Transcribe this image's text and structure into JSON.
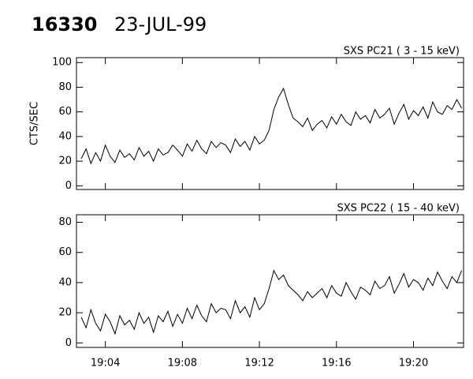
{
  "header": {
    "id": "16330",
    "date": "23-JUL-99"
  },
  "chart_data": [
    {
      "type": "line",
      "title": "SXS PC21  (  3 - 15 keV)",
      "y_label": "CTS/SEC",
      "xlim": [
        2.5,
        22.6
      ],
      "ylim": [
        -3,
        104
      ],
      "yticks": [
        0,
        20,
        40,
        60,
        80,
        100
      ],
      "grid": false,
      "x": [
        2.75,
        3.0,
        3.25,
        3.5,
        3.75,
        4.0,
        4.25,
        4.5,
        4.75,
        5.0,
        5.25,
        5.5,
        5.75,
        6.0,
        6.25,
        6.5,
        6.75,
        7.0,
        7.25,
        7.5,
        7.75,
        8.0,
        8.25,
        8.5,
        8.75,
        9.0,
        9.25,
        9.5,
        9.75,
        10.0,
        10.25,
        10.5,
        10.75,
        11.0,
        11.25,
        11.5,
        11.75,
        12.0,
        12.25,
        12.5,
        12.75,
        13.0,
        13.25,
        13.5,
        13.75,
        14.0,
        14.25,
        14.5,
        14.75,
        15.0,
        15.25,
        15.5,
        15.75,
        16.0,
        16.25,
        16.5,
        16.75,
        17.0,
        17.25,
        17.5,
        17.75,
        18.0,
        18.25,
        18.5,
        18.75,
        19.0,
        19.25,
        19.5,
        19.75,
        20.0,
        20.25,
        20.5,
        20.75,
        21.0,
        21.25,
        21.5,
        21.75,
        22.0,
        22.25,
        22.5
      ],
      "series": [
        {
          "color": "#000000",
          "values": [
            22,
            30,
            18,
            27,
            20,
            33,
            24,
            19,
            29,
            23,
            26,
            21,
            31,
            24,
            28,
            20,
            30,
            25,
            27,
            33,
            29,
            24,
            34,
            28,
            37,
            30,
            26,
            36,
            31,
            35,
            33,
            27,
            38,
            32,
            36,
            29,
            40,
            34,
            37,
            45,
            62,
            72,
            79,
            66,
            55,
            52,
            48,
            55,
            45,
            50,
            53,
            47,
            56,
            50,
            58,
            52,
            49,
            60,
            54,
            57,
            51,
            62,
            55,
            58,
            63,
            50,
            59,
            66,
            54,
            61,
            57,
            64,
            55,
            68,
            60,
            58,
            65,
            62,
            70,
            63
          ]
        }
      ]
    },
    {
      "type": "line",
      "title": "SXS PC22  ( 15 - 40 keV)",
      "xlim": [
        2.5,
        22.6
      ],
      "ylim": [
        -3,
        85
      ],
      "yticks": [
        0,
        20,
        40,
        60,
        80
      ],
      "grid": false,
      "xticks": [
        {
          "value": 4,
          "label": "19:04"
        },
        {
          "value": 8,
          "label": "19:08"
        },
        {
          "value": 12,
          "label": "19:12"
        },
        {
          "value": 16,
          "label": "19:16"
        },
        {
          "value": 20,
          "label": "19:20"
        }
      ],
      "x": [
        2.75,
        3.0,
        3.25,
        3.5,
        3.75,
        4.0,
        4.25,
        4.5,
        4.75,
        5.0,
        5.25,
        5.5,
        5.75,
        6.0,
        6.25,
        6.5,
        6.75,
        7.0,
        7.25,
        7.5,
        7.75,
        8.0,
        8.25,
        8.5,
        8.75,
        9.0,
        9.25,
        9.5,
        9.75,
        10.0,
        10.25,
        10.5,
        10.75,
        11.0,
        11.25,
        11.5,
        11.75,
        12.0,
        12.25,
        12.5,
        12.75,
        13.0,
        13.25,
        13.5,
        13.75,
        14.0,
        14.25,
        14.5,
        14.75,
        15.0,
        15.25,
        15.5,
        15.75,
        16.0,
        16.25,
        16.5,
        16.75,
        17.0,
        17.25,
        17.5,
        17.75,
        18.0,
        18.25,
        18.5,
        18.75,
        19.0,
        19.25,
        19.5,
        19.75,
        20.0,
        20.25,
        20.5,
        20.75,
        21.0,
        21.25,
        21.5,
        21.75,
        22.0,
        22.25,
        22.5
      ],
      "series": [
        {
          "color": "#000000",
          "values": [
            17,
            10,
            22,
            13,
            8,
            19,
            14,
            6,
            18,
            12,
            15,
            9,
            20,
            13,
            17,
            7,
            18,
            14,
            21,
            11,
            19,
            13,
            23,
            16,
            25,
            18,
            14,
            26,
            20,
            23,
            22,
            16,
            28,
            20,
            24,
            17,
            30,
            22,
            26,
            36,
            48,
            42,
            45,
            38,
            35,
            32,
            28,
            34,
            30,
            33,
            36,
            30,
            38,
            33,
            31,
            40,
            34,
            29,
            37,
            35,
            32,
            41,
            36,
            38,
            44,
            33,
            39,
            46,
            37,
            42,
            40,
            35,
            43,
            38,
            47,
            41,
            36,
            44,
            40,
            48
          ]
        }
      ]
    }
  ]
}
